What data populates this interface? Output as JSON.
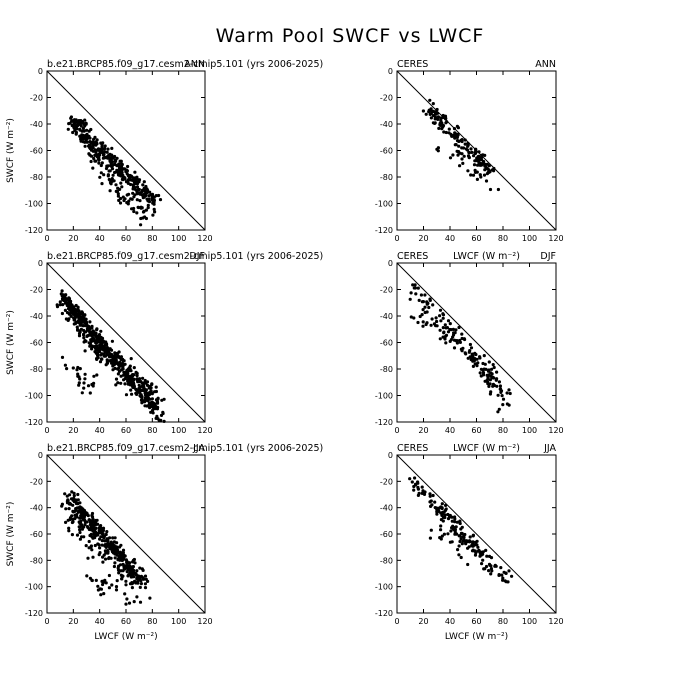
{
  "title": "Warm Pool SWCF vs LWCF",
  "colors": {
    "points": "#000000",
    "axes": "#000000",
    "background": "#ffffff"
  },
  "chart_data": [
    {
      "type": "scatter",
      "left_label": "b.e21.BRCP85.f09_g17.cesm2-cmip5.101 (yrs 2006-2025)",
      "right_label": "ANN",
      "xlabel": "",
      "ylabel": "SWCF (W m⁻²)",
      "xlim": [
        0,
        120
      ],
      "ylim": [
        -120,
        0
      ],
      "xticks": [
        0,
        20,
        40,
        60,
        80,
        100,
        120
      ],
      "yticks": [
        0,
        -20,
        -40,
        -60,
        -80,
        -100,
        -120
      ],
      "reference_line": "one-to-one",
      "grid": false,
      "cloud": [
        {
          "x": [
            18,
            30
          ],
          "y": [
            -37,
            -40
          ],
          "n": 24,
          "jitter": 1.5
        },
        {
          "x": [
            20,
            82
          ],
          "y": [
            -40,
            -98
          ],
          "n": 260,
          "jitter": 4
        },
        {
          "x": [
            30,
            80
          ],
          "y": [
            -55,
            -110
          ],
          "n": 90,
          "jitter": 6
        },
        {
          "x": [
            40,
            78
          ],
          "y": [
            -80,
            -118
          ],
          "n": 25,
          "jitter": 4
        }
      ]
    },
    {
      "type": "scatter",
      "left_label": "CERES",
      "right_label": "ANN",
      "xlabel": "",
      "ylabel": "",
      "xlim": [
        0,
        120
      ],
      "ylim": [
        -120,
        0
      ],
      "xticks": [
        0,
        20,
        40,
        60,
        80,
        100,
        120
      ],
      "yticks": [
        0,
        -20,
        -40,
        -60,
        -80,
        -100,
        -120
      ],
      "reference_line": "one-to-one",
      "grid": false,
      "cloud": [
        {
          "x": [
            23,
            70
          ],
          "y": [
            -28,
            -75
          ],
          "n": 140,
          "jitter": 4
        },
        {
          "x": [
            40,
            72
          ],
          "y": [
            -55,
            -90
          ],
          "n": 30,
          "jitter": 5
        },
        {
          "x": [
            30,
            32
          ],
          "y": [
            -58,
            -60
          ],
          "n": 3,
          "jitter": 1
        }
      ]
    },
    {
      "type": "scatter",
      "left_label": "b.e21.BRCP85.f09_g17.cesm2-cmip5.101 (yrs 2006-2025)",
      "right_label": "DJF",
      "xlabel": "",
      "ylabel": "SWCF (W m⁻²)",
      "xlim": [
        0,
        120
      ],
      "ylim": [
        -120,
        0
      ],
      "xticks": [
        0,
        20,
        40,
        60,
        80,
        100,
        120
      ],
      "yticks": [
        0,
        -20,
        -40,
        -60,
        -80,
        -100,
        -120
      ],
      "reference_line": "one-to-one",
      "grid": false,
      "cloud": [
        {
          "x": [
            12,
            88
          ],
          "y": [
            -24,
            -118
          ],
          "n": 230,
          "jitter": 3
        },
        {
          "x": [
            12,
            85
          ],
          "y": [
            -28,
            -105
          ],
          "n": 200,
          "jitter": 4
        },
        {
          "x": [
            12,
            40
          ],
          "y": [
            -30,
            -70
          ],
          "n": 80,
          "jitter": 4
        },
        {
          "x": [
            15,
            35
          ],
          "y": [
            -78,
            -95
          ],
          "n": 25,
          "jitter": 5
        },
        {
          "x": [
            35,
            80
          ],
          "y": [
            -60,
            -110
          ],
          "n": 90,
          "jitter": 5
        }
      ]
    },
    {
      "type": "scatter",
      "left_label": "CERES",
      "right_label": "DJF",
      "center_label": "LWCF (W m⁻²)",
      "xlabel": "",
      "ylabel": "",
      "xlim": [
        0,
        120
      ],
      "ylim": [
        -120,
        0
      ],
      "xticks": [
        0,
        20,
        40,
        60,
        80,
        100,
        120
      ],
      "yticks": [
        0,
        -20,
        -40,
        -60,
        -80,
        -100,
        -120
      ],
      "reference_line": "one-to-one",
      "grid": false,
      "cloud": [
        {
          "x": [
            12,
            82
          ],
          "y": [
            -18,
            -100
          ],
          "n": 130,
          "jitter": 5
        },
        {
          "x": [
            15,
            40
          ],
          "y": [
            -40,
            -60
          ],
          "n": 20,
          "jitter": 5
        },
        {
          "x": [
            60,
            80
          ],
          "y": [
            -70,
            -105
          ],
          "n": 25,
          "jitter": 5
        }
      ]
    },
    {
      "type": "scatter",
      "left_label": "b.e21.BRCP85.f09_g17.cesm2-cmip5.101 (yrs 2006-2025)",
      "right_label": "JJA",
      "xlabel": "LWCF (W m⁻²)",
      "ylabel": "SWCF (W m⁻²)",
      "xlim": [
        0,
        120
      ],
      "ylim": [
        -120,
        0
      ],
      "xticks": [
        0,
        20,
        40,
        60,
        80,
        100,
        120
      ],
      "yticks": [
        0,
        -20,
        -40,
        -60,
        -80,
        -100,
        -120
      ],
      "reference_line": "one-to-one",
      "grid": false,
      "cloud": [
        {
          "x": [
            17,
            72
          ],
          "y": [
            -32,
            -96
          ],
          "n": 260,
          "jitter": 4
        },
        {
          "x": [
            18,
            70
          ],
          "y": [
            -45,
            -100
          ],
          "n": 150,
          "jitter": 8
        },
        {
          "x": [
            30,
            65
          ],
          "y": [
            -90,
            -115
          ],
          "n": 25,
          "jitter": 5
        }
      ]
    },
    {
      "type": "scatter",
      "left_label": "CERES",
      "right_label": "JJA",
      "center_label": "LWCF (W m⁻²)",
      "xlabel": "LWCF (W m⁻²)",
      "ylabel": "",
      "xlim": [
        0,
        120
      ],
      "ylim": [
        -120,
        0
      ],
      "xticks": [
        0,
        20,
        40,
        60,
        80,
        100,
        120
      ],
      "yticks": [
        0,
        -20,
        -40,
        -60,
        -80,
        -100,
        -120
      ],
      "reference_line": "one-to-one",
      "grid": false,
      "cloud": [
        {
          "x": [
            10,
            82
          ],
          "y": [
            -18,
            -94
          ],
          "n": 150,
          "jitter": 4
        },
        {
          "x": [
            30,
            70
          ],
          "y": [
            -55,
            -85
          ],
          "n": 30,
          "jitter": 6
        }
      ]
    }
  ]
}
